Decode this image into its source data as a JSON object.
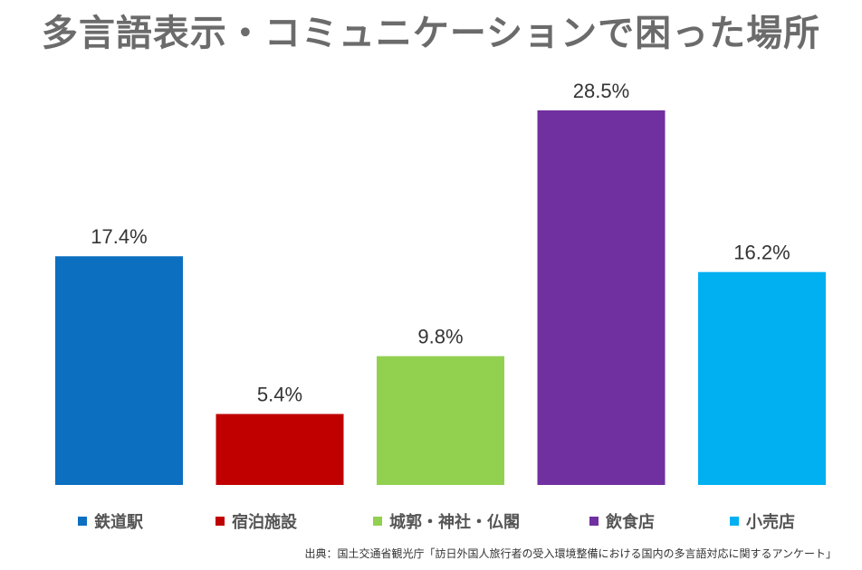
{
  "title": "多言語表示・コミュニケーションで困った場所",
  "source": "出典：国土交通省観光庁「訪日外国人旅行者の受入環境整備における国内の多言語対応に関するアンケート」",
  "chart_data": {
    "type": "bar",
    "title": "多言語表示・コミュニケーションで困った場所",
    "categories": [
      "鉄道駅",
      "宿泊施設",
      "城郭・神社・仏閣",
      "飲食店",
      "小売店"
    ],
    "values": [
      17.4,
      5.4,
      9.8,
      28.5,
      16.2
    ],
    "data_labels": [
      "17.4%",
      "5.4%",
      "9.8%",
      "28.5%",
      "16.2%"
    ],
    "colors": [
      "#0c6fc0",
      "#c00000",
      "#92d050",
      "#7030a0",
      "#00b0f0"
    ],
    "unit": "%",
    "ylim": [
      0,
      28.5
    ],
    "grid": false,
    "legend_position": "bottom",
    "xlabel": "",
    "ylabel": ""
  }
}
